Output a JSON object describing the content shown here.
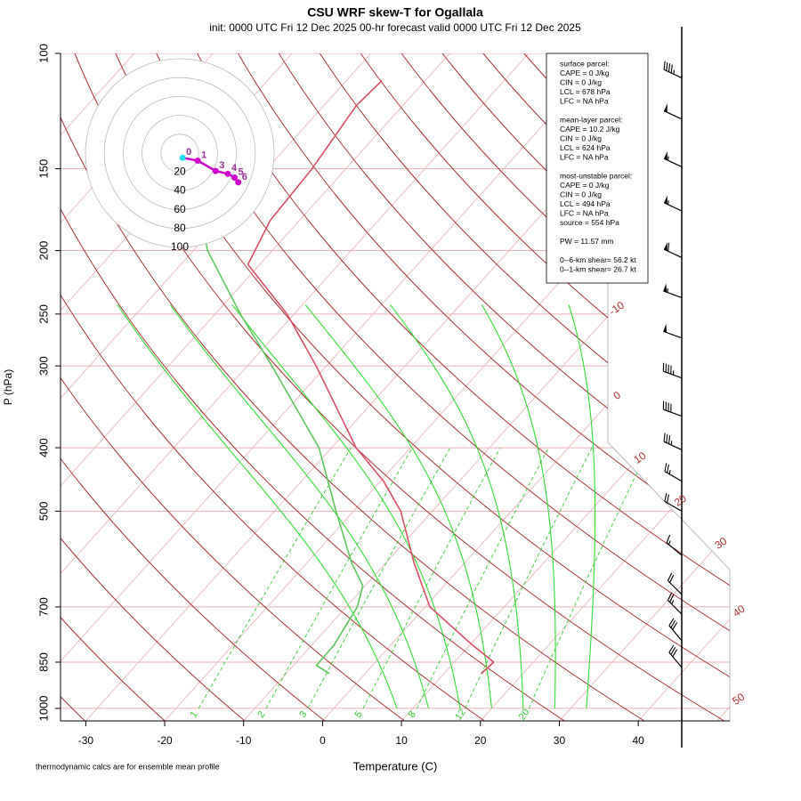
{
  "chart_data": {
    "type": "skewt",
    "title": "CSU WRF skew-T for Ogallala",
    "subtitle": "init: 0000 UTC Fri 12 Dec 2025    00-hr forecast valid 0000 UTC Fri 12 Dec 2025",
    "xlabel": "Temperature (C)",
    "ylabel": "P (hPa)",
    "footnote": "thermodynamic calcs are for ensemble mean profile",
    "xlim": [
      -33.2,
      51.6
    ],
    "ylim": [
      1045,
      100
    ],
    "log_y": true,
    "xticks": [
      -30,
      -20,
      -10,
      0,
      10,
      20,
      30,
      40
    ],
    "yticks": [
      100,
      150,
      200,
      250,
      300,
      400,
      500,
      700,
      850,
      1000
    ],
    "isotherms": [
      -110,
      -100,
      -90,
      -80,
      -70,
      -60,
      -50,
      -40,
      -30,
      -20,
      -10,
      0,
      10,
      20,
      30,
      40,
      50
    ],
    "isotherm_labels": [
      -10,
      0,
      10,
      20,
      30,
      40,
      50
    ],
    "dry_adiabats": [
      230,
      240,
      250,
      260,
      270,
      280,
      290,
      300,
      310,
      320,
      330,
      340,
      350,
      360,
      370,
      380,
      390,
      400,
      410,
      420,
      430,
      440,
      450,
      460,
      470,
      480
    ],
    "moist_adiabats": [
      8,
      12,
      16,
      20,
      24,
      28,
      32
    ],
    "mixing_ratios": [
      1,
      2,
      3,
      5,
      8,
      12,
      20
    ],
    "series": [
      {
        "color": "#d94f66",
        "pressure": [
          885,
          850,
          800,
          700,
          600,
          500,
          450,
          400,
          300,
          250,
          210,
          180,
          150,
          120,
          110
        ],
        "values": [
          14.7,
          15.0,
          10.3,
          0.6,
          -6.4,
          -14.0,
          -19.6,
          -26.9,
          -41.3,
          -50.9,
          -61.5,
          -63.7,
          -64.3,
          -65.9,
          -65.5
        ]
      },
      {
        "color": "#5cc65c",
        "pressure": [
          885,
          860,
          800,
          700,
          650,
          600,
          500,
          400,
          300,
          250,
          200,
          190
        ],
        "values": [
          -4.5,
          -7.1,
          -7.2,
          -8.6,
          -10.3,
          -14.3,
          -22.2,
          -31.6,
          -46.9,
          -56.8,
          -68.2,
          -70.2
        ]
      }
    ],
    "wind": {
      "pressure": [
        109,
        126,
        149,
        174,
        205,
        236,
        272,
        313,
        358,
        403,
        450,
        500,
        584,
        670,
        718,
        788,
        866
      ],
      "speed": [
        45,
        50,
        55,
        55,
        60,
        55,
        50,
        45,
        40,
        35,
        25,
        20,
        15,
        20,
        25,
        30,
        30
      ],
      "direction": [
        295,
        295,
        295,
        295,
        295,
        290,
        290,
        290,
        290,
        295,
        300,
        300,
        310,
        315,
        315,
        320,
        320
      ]
    },
    "hodograph": {
      "rings": [
        20,
        40,
        60,
        80,
        100
      ],
      "u": [
        3,
        19,
        38,
        51,
        58,
        62
      ],
      "v": [
        -5,
        -8,
        -19,
        -22,
        -26,
        -31
      ],
      "heights": [
        0,
        1,
        3,
        4,
        5,
        6
      ],
      "color": "#cc00cc"
    },
    "info_box": {
      "sections": [
        [
          "surface parcel:",
          "CAPE = 0 J/kg",
          "CIN = 0 J/kg",
          "LCL = 678 hPa",
          "LFC = NA hPa"
        ],
        [
          "mean-layer parcel:",
          "CAPE = 10.2 J/kg",
          "CIN = 0 J/kg",
          "LCL = 624 hPa",
          "LFC = NA hPa"
        ],
        [
          "most-unstable parcel:",
          "CAPE = 0 J/kg",
          "CIN = 0 J/kg",
          "LCL = 494 hPa",
          "LFC = NA hPa",
          "source = 554 hPa"
        ],
        [
          "PW =  11.57 mm"
        ],
        [
          "0--6-km shear= 56.2 kt",
          "0--1-km shear= 26.7 kt"
        ]
      ]
    }
  }
}
